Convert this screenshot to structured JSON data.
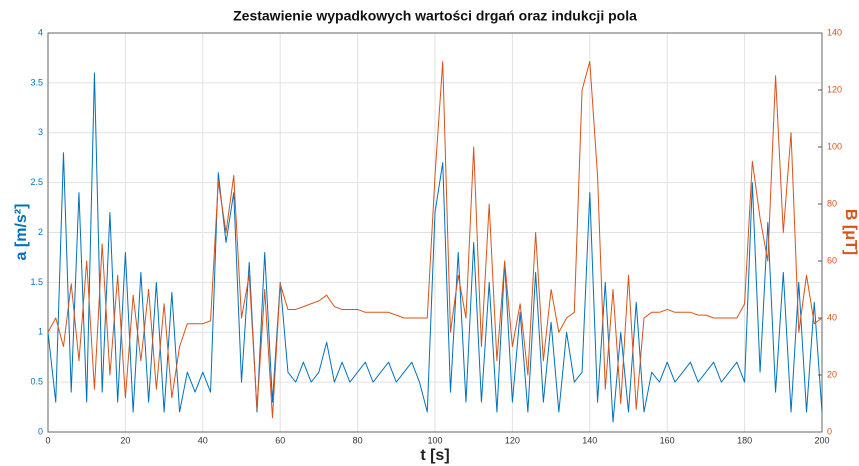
{
  "chart_data": {
    "type": "line",
    "title": "Zestawienie wypadkowych wartości drgań oraz indukcji pola",
    "x_label": "t [s]",
    "y_label": "a [m/s²]",
    "y2_label": "B [μT]",
    "grid": true,
    "xlim": [
      0,
      200
    ],
    "xticks": [
      0,
      20,
      40,
      60,
      80,
      100,
      120,
      140,
      160,
      180,
      200
    ],
    "ylim": [
      0,
      4
    ],
    "yticks": [
      0,
      0.5,
      1,
      1.5,
      2,
      2.5,
      3,
      3.5,
      4
    ],
    "y2lim": [
      0,
      140
    ],
    "y2ticks": [
      0,
      20,
      40,
      60,
      80,
      100,
      120,
      140
    ],
    "x": [
      0,
      2,
      4,
      6,
      8,
      10,
      12,
      14,
      16,
      18,
      20,
      22,
      24,
      26,
      28,
      30,
      32,
      34,
      36,
      38,
      40,
      42,
      44,
      46,
      48,
      50,
      52,
      54,
      56,
      58,
      60,
      62,
      64,
      66,
      68,
      70,
      72,
      74,
      76,
      78,
      80,
      82,
      84,
      86,
      88,
      90,
      92,
      94,
      96,
      98,
      100,
      102,
      104,
      106,
      108,
      110,
      112,
      114,
      116,
      118,
      120,
      122,
      124,
      126,
      128,
      130,
      132,
      134,
      136,
      138,
      140,
      142,
      144,
      146,
      148,
      150,
      152,
      154,
      156,
      158,
      160,
      162,
      164,
      166,
      168,
      170,
      172,
      174,
      176,
      178,
      180,
      182,
      184,
      186,
      188,
      190,
      192,
      194,
      196,
      198,
      200
    ],
    "series": [
      {
        "color": "#0072bd",
        "values": [
          1.0,
          0.3,
          2.8,
          0.4,
          2.4,
          0.3,
          3.6,
          0.4,
          2.2,
          0.3,
          1.8,
          0.2,
          1.6,
          0.3,
          1.5,
          0.2,
          1.4,
          0.2,
          0.6,
          0.4,
          0.6,
          0.4,
          2.6,
          1.9,
          2.4,
          0.5,
          1.7,
          0.2,
          1.8,
          0.3,
          1.5,
          0.6,
          0.5,
          0.7,
          0.5,
          0.6,
          0.9,
          0.5,
          0.7,
          0.5,
          0.6,
          0.7,
          0.5,
          0.6,
          0.7,
          0.5,
          0.6,
          0.7,
          0.5,
          0.2,
          2.2,
          2.7,
          0.4,
          1.8,
          0.3,
          1.9,
          0.3,
          1.5,
          0.2,
          1.7,
          0.3,
          1.2,
          0.2,
          1.6,
          0.3,
          1.1,
          0.2,
          1.0,
          0.5,
          0.6,
          2.4,
          0.3,
          1.5,
          0.1,
          1.0,
          0.2,
          1.3,
          0.2,
          0.6,
          0.5,
          0.7,
          0.5,
          0.6,
          0.7,
          0.5,
          0.6,
          0.7,
          0.5,
          0.6,
          0.7,
          0.5,
          2.5,
          0.6,
          2.1,
          0.4,
          1.6,
          0.2,
          1.5,
          0.2,
          1.3,
          0.2
        ]
      },
      {
        "color": "#d95319",
        "axis": "y2",
        "values": [
          35,
          40,
          30,
          52,
          25,
          60,
          15,
          66,
          20,
          55,
          12,
          48,
          25,
          50,
          15,
          45,
          12,
          30,
          38,
          38,
          38,
          39,
          88,
          70,
          90,
          40,
          55,
          8,
          50,
          5,
          52,
          43,
          43,
          44,
          45,
          46,
          48,
          44,
          43,
          43,
          43,
          42,
          42,
          42,
          42,
          41,
          40,
          40,
          40,
          40,
          90,
          130,
          35,
          55,
          40,
          100,
          30,
          80,
          25,
          60,
          30,
          45,
          20,
          70,
          25,
          50,
          35,
          40,
          42,
          120,
          130,
          90,
          15,
          50,
          10,
          55,
          8,
          40,
          42,
          42,
          43,
          42,
          42,
          42,
          41,
          41,
          40,
          40,
          40,
          40,
          45,
          95,
          75,
          60,
          125,
          70,
          105,
          35,
          55,
          38,
          40
        ]
      }
    ]
  }
}
